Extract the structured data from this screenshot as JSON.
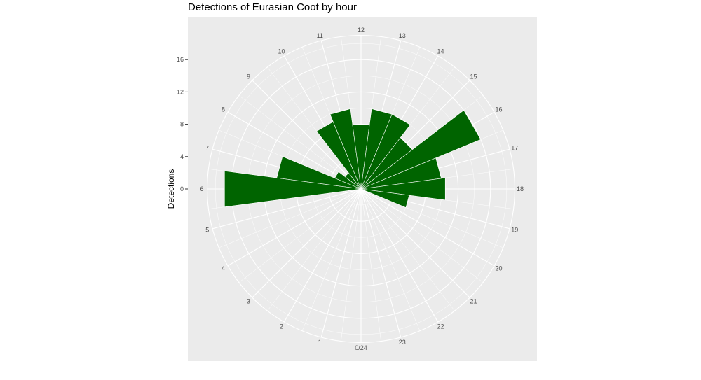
{
  "chart_data": {
    "type": "bar",
    "coord": "polar",
    "title": "Detections of Eurasian Coot by hour",
    "xlabel": "",
    "ylabel": "Detections",
    "categories": [
      "0/24",
      "1",
      "2",
      "3",
      "4",
      "5",
      "6",
      "7",
      "8",
      "9",
      "10",
      "11",
      "12",
      "13",
      "14",
      "15",
      "16",
      "17",
      "18",
      "19",
      "20",
      "21",
      "22",
      "23"
    ],
    "y_tick_labels": [
      "0",
      "4",
      "8",
      "12",
      "16"
    ],
    "values": [
      0,
      0,
      0,
      0,
      0,
      0,
      17,
      10.5,
      3.5,
      2.5,
      9,
      10,
      8,
      10,
      10,
      8,
      16,
      10,
      10.5,
      6,
      0,
      0,
      0,
      0
    ],
    "values_lower": [
      0,
      0,
      0,
      0,
      0,
      0,
      0,
      0,
      0,
      0,
      0,
      0,
      0,
      0,
      0,
      0,
      0,
      0,
      -2.5,
      0,
      0,
      0,
      0,
      0
    ],
    "ylim": [
      0,
      19
    ],
    "series_color": "#006400",
    "panel_color": "#ebebeb",
    "grid_color": "#ffffff",
    "grid": true,
    "legend": "none"
  }
}
